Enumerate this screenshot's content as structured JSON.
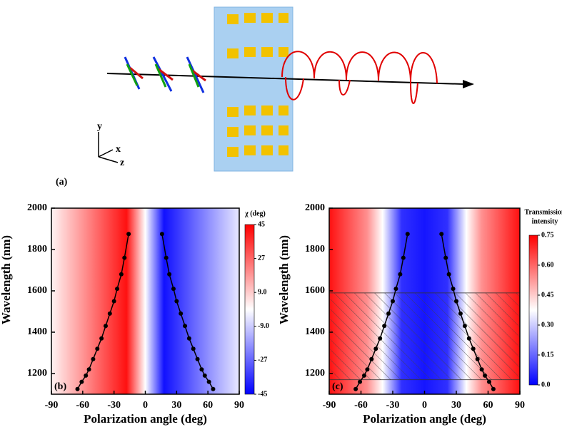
{
  "illustration": {
    "label": "(a)",
    "axes": [
      "y",
      "x",
      "z"
    ]
  },
  "chart_data": [
    {
      "type": "heatmap",
      "panel": "(b)",
      "xlabel": "Polarization angle (deg)",
      "ylabel": "Wavelength (nm)",
      "xlim": [
        -90,
        90
      ],
      "xticks": [
        -90,
        -60,
        -30,
        0,
        30,
        60,
        90
      ],
      "ylim": [
        1100,
        2000
      ],
      "yticks": [
        1200,
        1400,
        1600,
        1800,
        2000
      ],
      "colorbar": {
        "title": "χ (deg)",
        "lim": [
          -45,
          45
        ],
        "ticks": [
          45,
          27,
          {
            "value": 9,
            "label": "9.0"
          },
          {
            "value": -9,
            "label": "-9.0"
          },
          -27,
          -45
        ],
        "colors": [
          "#0000ff",
          "#ffffff",
          "#ff0000"
        ]
      },
      "series": [
        {
          "color": "#000000",
          "x": [
            -65,
            -61,
            -57,
            -54,
            -50,
            -46,
            -42,
            -38,
            -34,
            -30,
            -27,
            -23,
            -20,
            -16
          ],
          "values": [
            1125,
            1160,
            1190,
            1220,
            1270,
            1320,
            1370,
            1430,
            1490,
            1550,
            1610,
            1680,
            1760,
            1875
          ]
        },
        {
          "color": "#000000",
          "x": [
            65,
            61,
            57,
            54,
            50,
            46,
            42,
            38,
            34,
            30,
            27,
            23,
            20,
            16
          ],
          "values": [
            1125,
            1160,
            1190,
            1220,
            1270,
            1320,
            1370,
            1430,
            1490,
            1550,
            1610,
            1680,
            1760,
            1875
          ]
        }
      ]
    },
    {
      "type": "heatmap",
      "panel": "(c)",
      "xlabel": "Polarization angle (deg)",
      "ylabel": "Wavelength (nm)",
      "xlim": [
        -90,
        90
      ],
      "xticks": [
        -90,
        -60,
        -30,
        0,
        30,
        60,
        90
      ],
      "ylim": [
        1100,
        2000
      ],
      "yticks": [
        1200,
        1400,
        1600,
        1800,
        2000
      ],
      "hatch_region": [
        1170,
        1590
      ],
      "colorbar": {
        "title": [
          "Transmission",
          "intensity"
        ],
        "lim": [
          0,
          0.75
        ],
        "ticks": [
          0.75,
          {
            "value": 0.6,
            "label": "0.60"
          },
          0.45,
          {
            "value": 0.3,
            "label": "0.30"
          },
          0.15,
          {
            "value": 0,
            "label": "0.0"
          }
        ],
        "colors": [
          "#0000ff",
          "#ffffff",
          "#ff0000"
        ]
      },
      "series": [
        {
          "color": "#000000",
          "x": [
            -65,
            -61,
            -57,
            -54,
            -50,
            -46,
            -42,
            -38,
            -34,
            -30,
            -27,
            -23,
            -20,
            -16
          ],
          "values": [
            1125,
            1160,
            1190,
            1220,
            1270,
            1320,
            1370,
            1430,
            1490,
            1550,
            1610,
            1680,
            1760,
            1875
          ]
        },
        {
          "color": "#000000",
          "x": [
            65,
            61,
            57,
            54,
            50,
            46,
            42,
            38,
            34,
            30,
            27,
            23,
            20,
            16
          ],
          "values": [
            1125,
            1160,
            1190,
            1220,
            1270,
            1320,
            1370,
            1430,
            1490,
            1550,
            1610,
            1680,
            1760,
            1875
          ]
        }
      ]
    }
  ]
}
